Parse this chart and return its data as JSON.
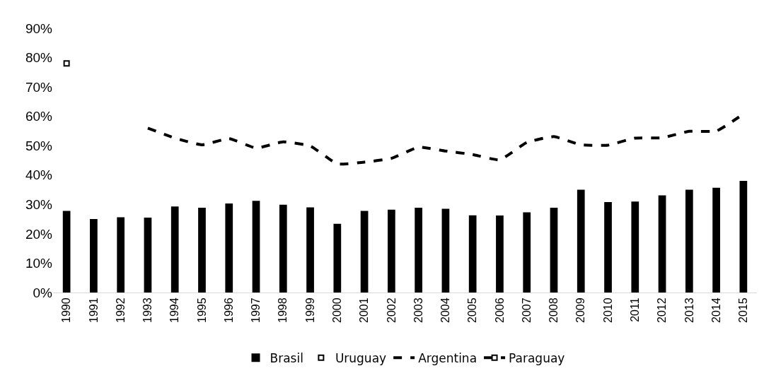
{
  "chart_data": {
    "type": "bar",
    "categories": [
      "1990",
      "1991",
      "1992",
      "1993",
      "1994",
      "1995",
      "1996",
      "1997",
      "1998",
      "1999",
      "2000",
      "2001",
      "2002",
      "2003",
      "2004",
      "2005",
      "2006",
      "2007",
      "2008",
      "2009",
      "2010",
      "2011",
      "2012",
      "2013",
      "2014",
      "2015"
    ],
    "series": [
      {
        "name": "Brasil",
        "color": "#000000",
        "values": [
          27.8,
          25.0,
          25.6,
          25.5,
          29.3,
          28.9,
          30.3,
          31.2,
          29.9,
          29.0,
          23.4,
          27.8,
          28.2,
          28.9,
          28.5,
          26.3,
          26.2,
          27.3,
          28.9,
          35.0,
          30.8,
          31.0,
          33.1,
          35.0,
          35.7,
          38.0
        ]
      },
      {
        "name": "Uruguay",
        "type": "scatter",
        "color": "#000000",
        "marker": "square",
        "values": [
          null,
          null,
          null,
          null,
          null,
          null,
          null,
          null,
          null,
          null,
          null,
          null,
          null,
          null,
          null,
          null,
          null,
          null,
          null,
          null,
          null,
          null,
          null,
          null,
          null,
          null
        ]
      },
      {
        "name": "Argentina",
        "type": "line",
        "color": "#000000",
        "marker": "none",
        "line_style": "dashed",
        "values": [
          null,
          null,
          null,
          56.0,
          52.6,
          50.3,
          52.4,
          49.2,
          51.3,
          49.9,
          43.8,
          44.4,
          45.7,
          49.5,
          48.2,
          47.0,
          45.2,
          51.1,
          53.1,
          50.3,
          50.2,
          52.6,
          52.7,
          54.9,
          55.0,
          60.8
        ]
      },
      {
        "name": "Paraguay",
        "type": "line",
        "color": "#000000",
        "marker": "square",
        "line_style": "dashed",
        "values": [
          78,
          null,
          null,
          null,
          null,
          null,
          null,
          null,
          null,
          null,
          null,
          null,
          null,
          null,
          null,
          null,
          null,
          null,
          null,
          null,
          null,
          null,
          null,
          null,
          null,
          null
        ]
      }
    ],
    "ylim": [
      0,
      90
    ],
    "yticks": [
      {
        "value": 0,
        "label": "0%"
      },
      {
        "value": 10,
        "label": "10%"
      },
      {
        "value": 20,
        "label": "20%"
      },
      {
        "value": 30,
        "label": "30%"
      },
      {
        "value": 40,
        "label": "40%"
      },
      {
        "value": 50,
        "label": "50%"
      },
      {
        "value": 60,
        "label": "60%"
      },
      {
        "value": 70,
        "label": "70%"
      },
      {
        "value": 80,
        "label": "80%"
      },
      {
        "value": 90,
        "label": "90%"
      }
    ],
    "grid": false,
    "legend": "bottom"
  }
}
